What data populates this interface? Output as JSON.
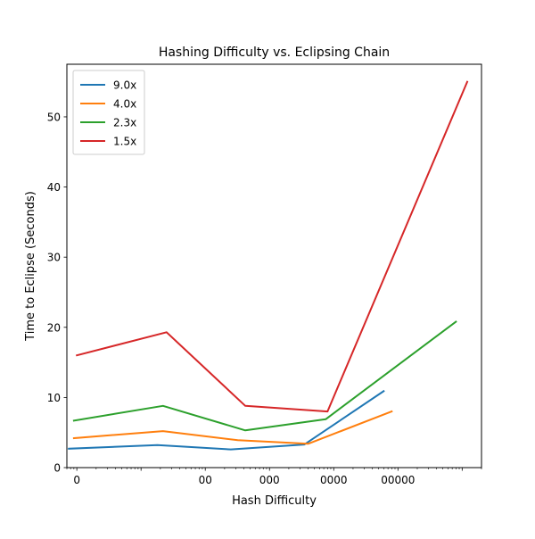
{
  "chart_data": {
    "type": "line",
    "title": "Hashing Difficulty vs. Eclipsing Chain",
    "xlabel": "Hash Difficulty",
    "ylabel": "Time to Eclipse (Seconds)",
    "x_scale": "log",
    "xlim": [
      0.7,
      2000000
    ],
    "ylim": [
      0,
      57.5
    ],
    "x_major_ticks": [
      1,
      100,
      1000,
      10000,
      100000
    ],
    "x_tick_labels": [
      "0",
      "00",
      "000",
      "0000",
      "00000"
    ],
    "y_ticks": [
      0,
      10,
      20,
      30,
      40,
      50
    ],
    "y_tick_labels": [
      "0",
      "10",
      "20",
      "30",
      "40",
      "50"
    ],
    "grid": false,
    "legend_position": "upper-left",
    "series": [
      {
        "name": "9.0x",
        "color": "#1f77b4",
        "x": [
          0.75,
          18,
          250,
          3500,
          60000
        ],
        "y": [
          2.7,
          3.2,
          2.6,
          3.3,
          10.9
        ]
      },
      {
        "name": "4.0x",
        "color": "#ff7f0e",
        "x": [
          0.9,
          22,
          320,
          4000,
          80000
        ],
        "y": [
          4.2,
          5.2,
          3.9,
          3.4,
          8.0
        ]
      },
      {
        "name": "2.3x",
        "color": "#2ca02c",
        "x": [
          0.9,
          22,
          420,
          7500,
          800000
        ],
        "y": [
          6.7,
          8.8,
          5.3,
          6.9,
          20.8
        ]
      },
      {
        "name": "1.5x",
        "color": "#d62728",
        "x": [
          1.0,
          25,
          420,
          8000,
          1200000
        ],
        "y": [
          16.0,
          19.3,
          8.8,
          8.0,
          55.0
        ]
      }
    ]
  }
}
